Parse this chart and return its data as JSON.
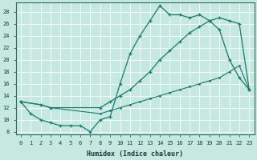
{
  "xlabel": "Humidex (Indice chaleur)",
  "bg_color": "#c5e8e0",
  "grid_color": "#ffffff",
  "line_color": "#1a7a6e",
  "xlim": [
    -0.5,
    23.5
  ],
  "ylim": [
    7.5,
    29.5
  ],
  "xticks": [
    0,
    1,
    2,
    3,
    4,
    5,
    6,
    7,
    8,
    9,
    10,
    11,
    12,
    13,
    14,
    15,
    16,
    17,
    18,
    19,
    20,
    21,
    22,
    23
  ],
  "yticks": [
    8,
    10,
    12,
    14,
    16,
    18,
    20,
    22,
    24,
    26,
    28
  ],
  "curve1_x": [
    0,
    1,
    2,
    3,
    4,
    5,
    6,
    7,
    8,
    9,
    10,
    11,
    12,
    13,
    14,
    15,
    16,
    17,
    18,
    19,
    20,
    21,
    22,
    23
  ],
  "curve1_y": [
    13,
    11,
    10,
    9.5,
    9,
    9,
    9,
    8,
    10,
    10.5,
    16,
    21,
    24,
    26.5,
    29,
    27.5,
    27.5,
    27,
    27.5,
    26.5,
    25,
    20,
    17,
    15
  ],
  "curve2_x": [
    0,
    2,
    3,
    8,
    9,
    10,
    11,
    12,
    13,
    14,
    15,
    16,
    17,
    18,
    19,
    20,
    21,
    22,
    23
  ],
  "curve2_y": [
    13,
    12.5,
    12,
    12,
    13,
    14,
    15,
    16.5,
    18,
    20,
    21.5,
    23,
    24.5,
    25.5,
    26.5,
    27,
    26.5,
    26,
    15
  ],
  "curve3_x": [
    0,
    2,
    3,
    8,
    9,
    10,
    11,
    12,
    13,
    14,
    15,
    16,
    17,
    18,
    19,
    20,
    21,
    22,
    23
  ],
  "curve3_y": [
    13,
    12.5,
    12,
    11,
    11.5,
    12,
    12.5,
    13,
    13.5,
    14,
    14.5,
    15,
    15.5,
    16,
    16.5,
    17,
    18,
    19,
    15
  ]
}
